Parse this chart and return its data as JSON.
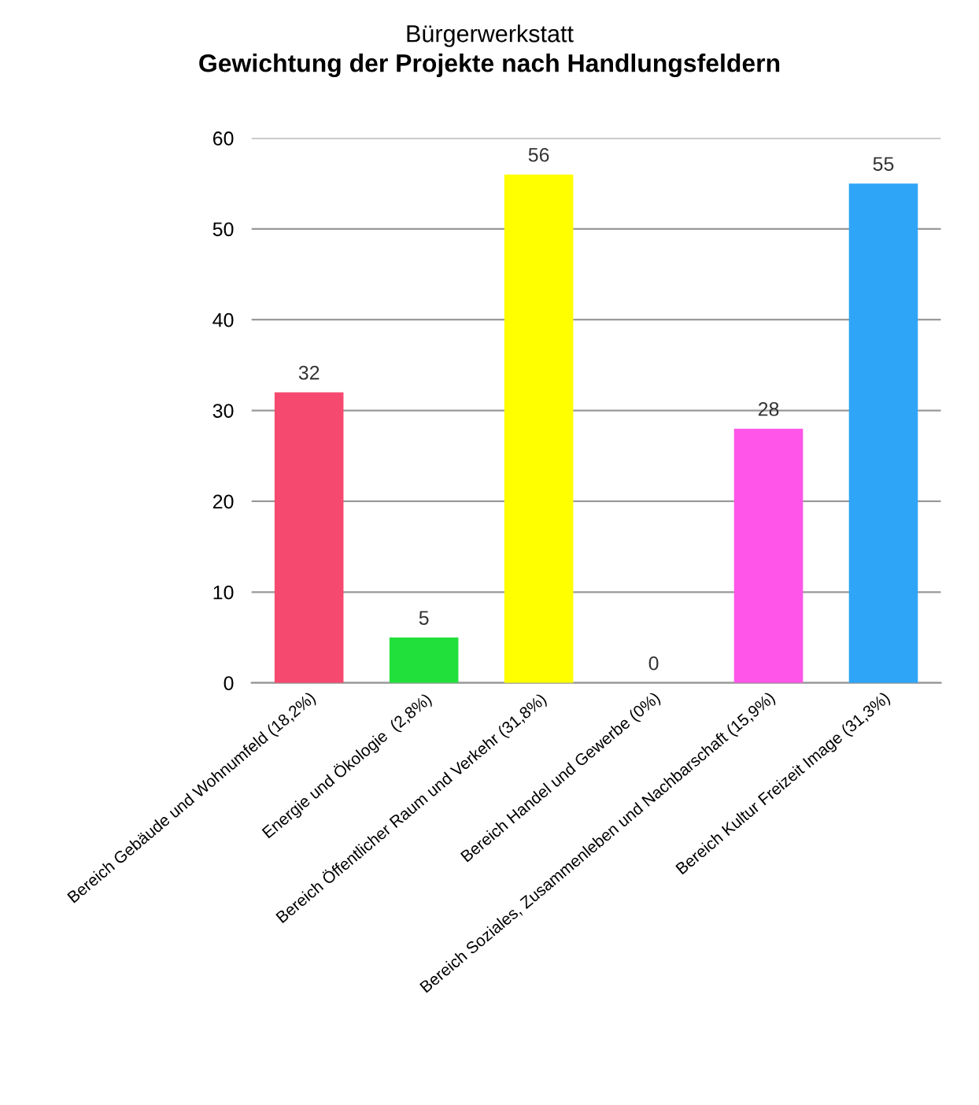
{
  "chart_data": {
    "type": "bar",
    "title": "Bürgerwerkstatt",
    "subtitle": "Gewichtung der Projekte nach Handlungsfeldern",
    "categories": [
      "Bereich Gebäude und Wohnumfeld (18,2%)",
      "Energie und Ökologie  (2,8%)",
      "Bereich Öffentlicher Raum und Verkehr (31,8%)",
      "Bereich Handel und Gewerbe (0%)",
      "Bereich Soziales, Zusammenleben und Nachbarschaft (15,9%)",
      "Bereich Kultur Freizeit Image (31,3%)"
    ],
    "values": [
      32,
      5,
      56,
      0,
      28,
      55
    ],
    "colors": [
      "#f5496f",
      "#22e03c",
      "#ffff00",
      "#ff8c00",
      "#ff55e8",
      "#2ea5f7"
    ],
    "ylim": [
      0,
      60
    ],
    "yticks": [
      0,
      10,
      20,
      30,
      40,
      50,
      60
    ],
    "grid": "y",
    "data_labels": true
  }
}
